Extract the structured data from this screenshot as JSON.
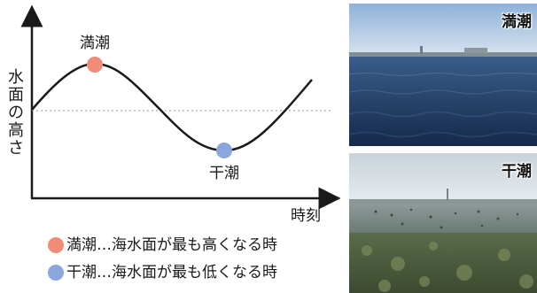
{
  "diagram": {
    "y_axis_label": [
      "水",
      "面",
      "の",
      "高",
      "さ"
    ],
    "x_axis_label": "時刻",
    "high_tide_label": "満潮",
    "low_tide_label": "干潮"
  },
  "legend": [
    {
      "marker_color": "#f08c78",
      "text": "満潮…海水面が最も高くなる時"
    },
    {
      "marker_color": "#8aa6dd",
      "text": "干潮…海水面が最も低くなる時"
    }
  ],
  "photos": [
    {
      "label": "満潮",
      "scene": "high-tide"
    },
    {
      "label": "干潮",
      "scene": "low-tide"
    }
  ],
  "colors": {
    "curve": "#1a1a1a",
    "mean_line": "#aaaaaa",
    "high": "#f08c78",
    "low": "#8aa6dd"
  }
}
